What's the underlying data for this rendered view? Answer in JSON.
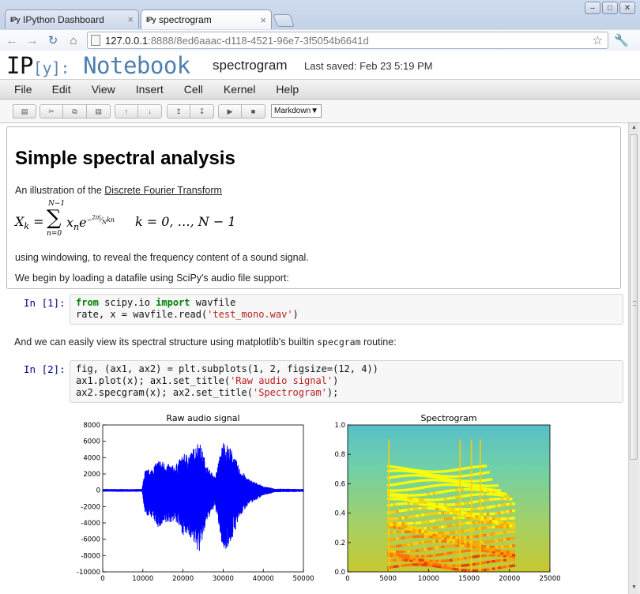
{
  "browser": {
    "tabs": [
      {
        "favicon": "IPy",
        "title": "IPython Dashboard",
        "close": "×",
        "active": false
      },
      {
        "favicon": "IPy",
        "title": "spectrogram",
        "close": "×",
        "active": true
      }
    ],
    "window_buttons": [
      "–",
      "□",
      "✕"
    ],
    "url_host": "127.0.0.1",
    "url_path": ":8888/8ed6aaac-d118-4521-96e7-3f5054b6641d"
  },
  "notebook": {
    "logo_ip": "IP",
    "logo_y": "[y]:",
    "logo_notebook": "Notebook",
    "title": "spectrogram",
    "saved": "Last saved: Feb 23 5:19 PM"
  },
  "menu": [
    "File",
    "Edit",
    "View",
    "Insert",
    "Cell",
    "Kernel",
    "Help"
  ],
  "toolbar": {
    "cell_type": "Markdown",
    "cell_type_arrow": "▼"
  },
  "markdown": {
    "heading": "Simple spectral analysis",
    "intro_prefix": "An illustration of the ",
    "intro_link": "Discrete Fourier Transform",
    "windowing": "using windowing, to reveal the frequency content of a sound signal.",
    "loading": "We begin by loading a datafile using SciPy's audio file support:"
  },
  "cells": [
    {
      "prompt": "In [1]:"
    },
    {
      "prompt": "In [2]:"
    }
  ],
  "between_text_prefix": "And we can easily view its spectral structure using matplotlib's builtin ",
  "between_text_code": "specgram",
  "between_text_suffix": " routine:",
  "chart_data": [
    {
      "type": "line",
      "title": "Raw audio signal",
      "xlim": [
        0,
        50000
      ],
      "ylim": [
        -10000,
        8000
      ],
      "xticks": [
        0,
        10000,
        20000,
        30000,
        40000,
        50000
      ],
      "yticks": [
        8000,
        6000,
        4000,
        2000,
        0,
        -2000,
        -4000,
        -6000,
        -8000,
        -10000
      ],
      "series_color": "#0000ff",
      "envelope_x": [
        0,
        4000,
        9800,
        10500,
        12000,
        14000,
        16000,
        18000,
        20000,
        22000,
        24000,
        26000,
        28000,
        30000,
        32000,
        34000,
        36000,
        38000,
        40000,
        43000,
        50000
      ],
      "envelope_y": [
        150,
        150,
        150,
        2500,
        2600,
        3800,
        3300,
        3000,
        4400,
        4700,
        6200,
        3000,
        1600,
        6100,
        5100,
        2800,
        1500,
        1000,
        500,
        200,
        150
      ]
    },
    {
      "type": "heatmap",
      "title": "Spectrogram",
      "xlim": [
        0,
        25000
      ],
      "ylim": [
        0.0,
        1.0
      ],
      "xticks": [
        0,
        5000,
        10000,
        15000,
        20000,
        25000
      ],
      "yticks": [
        0.0,
        0.2,
        0.4,
        0.6,
        0.8,
        1.0
      ],
      "colormap": "jet"
    }
  ]
}
